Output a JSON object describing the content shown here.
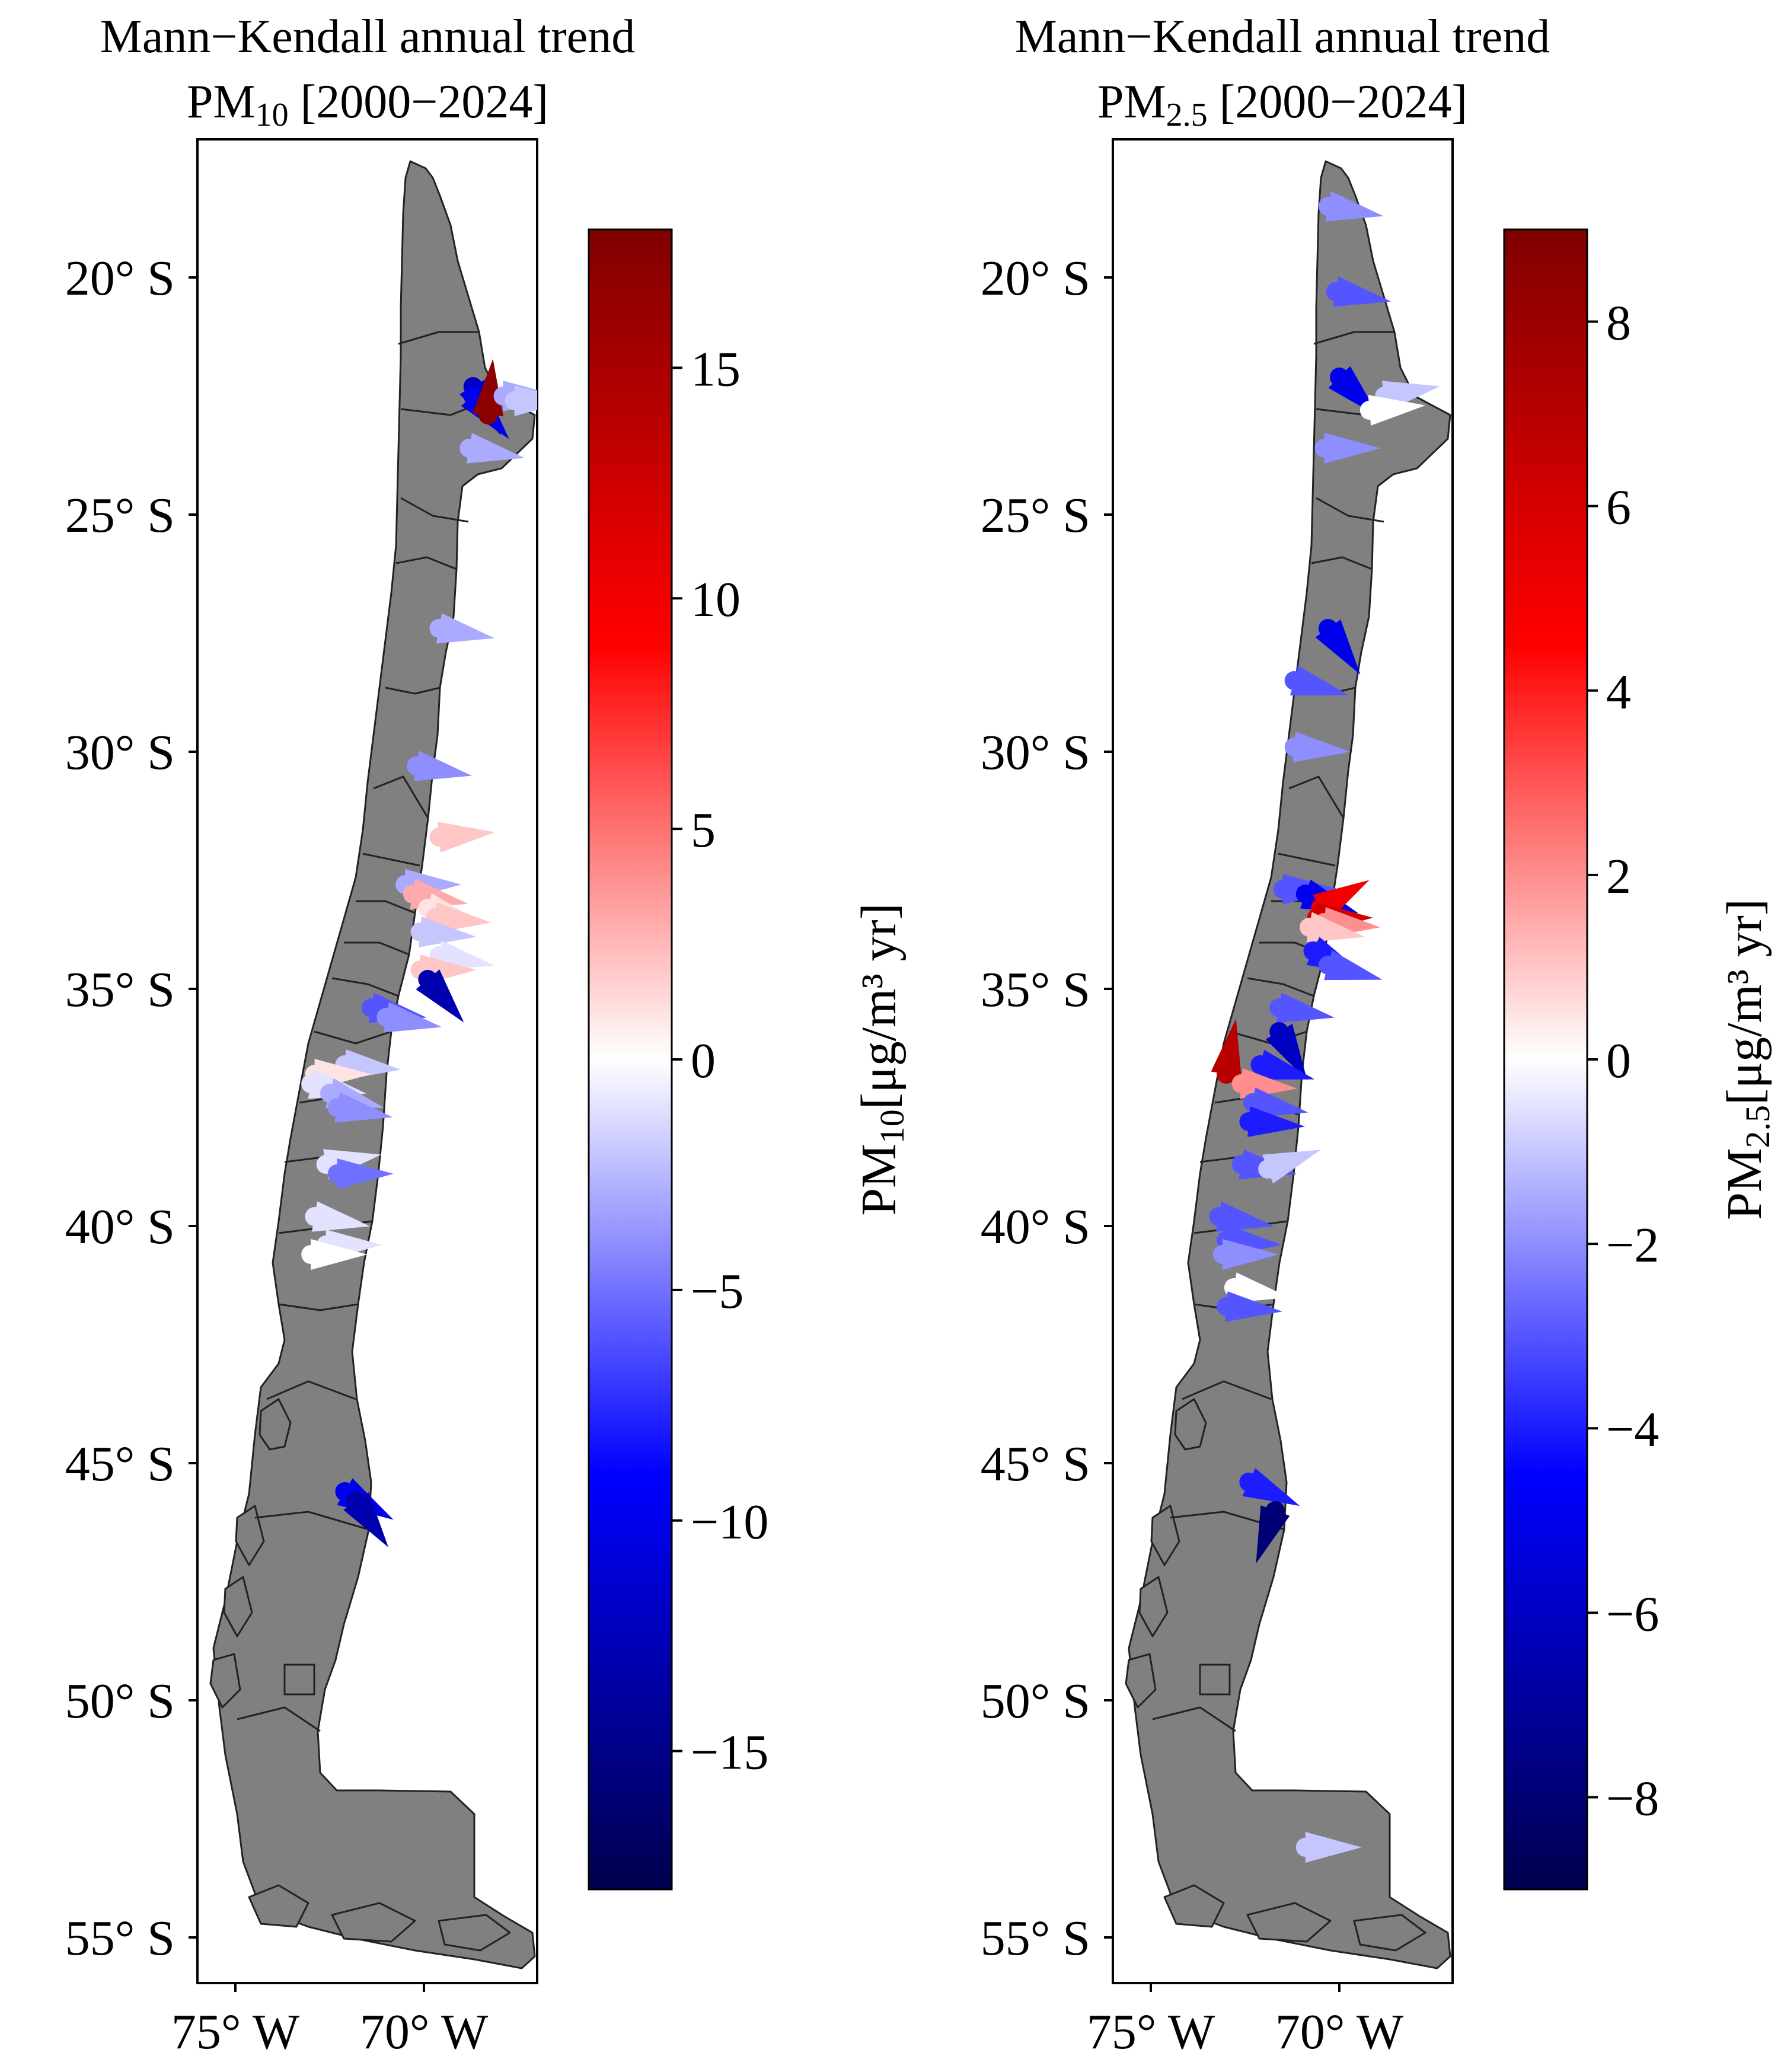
{
  "panels": [
    {
      "title_line1": "Mann−Kendall annual trend",
      "title_pm_base": "PM",
      "title_pm_sub": "10",
      "title_range": " [2000−2024]",
      "cbar_label_base": "PM",
      "cbar_label_sub": "10",
      "cbar_label_unit": "[μg/m³ yr]",
      "cbar_ticks": [
        "15",
        "10",
        "5",
        "0",
        "−5",
        "−10",
        "−15"
      ]
    },
    {
      "title_line1": "Mann−Kendall annual trend",
      "title_pm_base": "PM",
      "title_pm_sub": "2.5",
      "title_range": " [2000−2024]",
      "cbar_label_base": "PM",
      "cbar_label_sub": "2.5",
      "cbar_label_unit": "[μg/m³ yr]",
      "cbar_ticks": [
        "8",
        "6",
        "4",
        "2",
        "0",
        "−2",
        "−4",
        "−6",
        "−8"
      ]
    }
  ],
  "lat_labels": [
    "20° S",
    "25° S",
    "30° S",
    "35° S",
    "40° S",
    "45° S",
    "50° S",
    "55° S"
  ],
  "lon_labels": [
    "75° W",
    "70° W"
  ],
  "colors": {
    "land": "#808080",
    "border": "#222222",
    "colormap": "seismic",
    "seismic_stops": [
      "#00004c",
      "#0000ff",
      "#ffffff",
      "#ff0000",
      "#7f0000"
    ]
  },
  "chart_data": [
    {
      "type": "map",
      "variable": "PM10",
      "unit": "μg/m³ yr",
      "color_range": [
        -18,
        18
      ],
      "lat_range": [
        -56,
        -17
      ],
      "lon_range": [
        -76,
        -67
      ],
      "stations": [
        {
          "lat": -22.3,
          "lon": -68.7,
          "trend": -12,
          "angle": 60
        },
        {
          "lat": -22.5,
          "lon": -68.7,
          "trend": -10,
          "angle": 50
        },
        {
          "lat": -22.9,
          "lon": -68.3,
          "trend": 17,
          "angle": -85
        },
        {
          "lat": -22.5,
          "lon": -67.9,
          "trend": -3,
          "angle": 0
        },
        {
          "lat": -22.6,
          "lon": -67.6,
          "trend": -2,
          "angle": 0
        },
        {
          "lat": -23.6,
          "lon": -68.8,
          "trend": -3,
          "angle": 10
        },
        {
          "lat": -27.4,
          "lon": -69.6,
          "trend": -3,
          "angle": 10
        },
        {
          "lat": -30.3,
          "lon": -70.2,
          "trend": -4,
          "angle": 10
        },
        {
          "lat": -31.8,
          "lon": -69.6,
          "trend": 2,
          "angle": -5
        },
        {
          "lat": -32.8,
          "lon": -70.5,
          "trend": -3,
          "angle": 0
        },
        {
          "lat": -33.0,
          "lon": -70.3,
          "trend": 3,
          "angle": 10
        },
        {
          "lat": -33.3,
          "lon": -69.9,
          "trend": 1,
          "angle": 15
        },
        {
          "lat": -33.5,
          "lon": -69.7,
          "trend": 2,
          "angle": 5
        },
        {
          "lat": -33.8,
          "lon": -70.1,
          "trend": -2,
          "angle": 5
        },
        {
          "lat": -34.3,
          "lon": -69.6,
          "trend": -1,
          "angle": 10
        },
        {
          "lat": -34.6,
          "lon": -70.1,
          "trend": 2,
          "angle": 0
        },
        {
          "lat": -34.8,
          "lon": -69.9,
          "trend": -13,
          "angle": 50
        },
        {
          "lat": -35.4,
          "lon": -71.4,
          "trend": -6,
          "angle": 10
        },
        {
          "lat": -35.6,
          "lon": -71.0,
          "trend": -4,
          "angle": 10
        },
        {
          "lat": -36.6,
          "lon": -72.1,
          "trend": -2,
          "angle": 5
        },
        {
          "lat": -36.8,
          "lon": -72.9,
          "trend": 1,
          "angle": 0
        },
        {
          "lat": -37.0,
          "lon": -73.0,
          "trend": -1,
          "angle": 10
        },
        {
          "lat": -37.2,
          "lon": -72.5,
          "trend": -3,
          "angle": 15
        },
        {
          "lat": -37.5,
          "lon": -72.3,
          "trend": -4,
          "angle": 10
        },
        {
          "lat": -38.7,
          "lon": -72.6,
          "trend": -1,
          "angle": -10
        },
        {
          "lat": -38.9,
          "lon": -72.3,
          "trend": -5,
          "angle": 0
        },
        {
          "lat": -39.8,
          "lon": -72.9,
          "trend": -1,
          "angle": 10
        },
        {
          "lat": -40.4,
          "lon": -72.6,
          "trend": -1,
          "angle": 0
        },
        {
          "lat": -40.6,
          "lon": -73.0,
          "trend": 0,
          "angle": 0
        },
        {
          "lat": -45.6,
          "lon": -72.1,
          "trend": -10,
          "angle": 30
        },
        {
          "lat": -45.8,
          "lon": -71.8,
          "trend": -13,
          "angle": 55
        }
      ]
    },
    {
      "type": "map",
      "variable": "PM2.5",
      "unit": "μg/m³ yr",
      "color_range": [
        -9,
        9
      ],
      "lat_range": [
        -56,
        -17
      ],
      "lon_range": [
        -76,
        -67
      ],
      "stations": [
        {
          "lat": -18.5,
          "lon": -70.3,
          "trend": -2,
          "angle": 10
        },
        {
          "lat": -20.3,
          "lon": -70.1,
          "trend": -3,
          "angle": 10
        },
        {
          "lat": -22.1,
          "lon": -70.0,
          "trend": -5,
          "angle": 45
        },
        {
          "lat": -22.5,
          "lon": -68.8,
          "trend": -1,
          "angle": -10
        },
        {
          "lat": -22.8,
          "lon": -69.2,
          "trend": 0,
          "angle": -5
        },
        {
          "lat": -23.6,
          "lon": -70.4,
          "trend": -2,
          "angle": 0
        },
        {
          "lat": -27.4,
          "lon": -70.3,
          "trend": -5,
          "angle": 55
        },
        {
          "lat": -28.5,
          "lon": -71.2,
          "trend": -3,
          "angle": 15
        },
        {
          "lat": -29.9,
          "lon": -71.2,
          "trend": -2,
          "angle": 5
        },
        {
          "lat": -32.9,
          "lon": -71.5,
          "trend": -3,
          "angle": 0
        },
        {
          "lat": -33.0,
          "lon": -70.9,
          "trend": -5,
          "angle": 20
        },
        {
          "lat": -33.3,
          "lon": -70.5,
          "trend": 5,
          "angle": -30
        },
        {
          "lat": -33.5,
          "lon": -70.6,
          "trend": 6,
          "angle": 0
        },
        {
          "lat": -33.6,
          "lon": -70.4,
          "trend": 2,
          "angle": 5
        },
        {
          "lat": -33.7,
          "lon": -70.8,
          "trend": 1,
          "angle": 10
        },
        {
          "lat": -34.2,
          "lon": -70.7,
          "trend": -4,
          "angle": 25
        },
        {
          "lat": -34.5,
          "lon": -70.3,
          "trend": -3,
          "angle": 15
        },
        {
          "lat": -35.4,
          "lon": -71.6,
          "trend": -3,
          "angle": 10
        },
        {
          "lat": -35.9,
          "lon": -71.6,
          "trend": -6,
          "angle": 60
        },
        {
          "lat": -36.6,
          "lon": -72.1,
          "trend": -4,
          "angle": 15
        },
        {
          "lat": -36.8,
          "lon": -73.0,
          "trend": 7,
          "angle": -80
        },
        {
          "lat": -37.0,
          "lon": -72.6,
          "trend": 2,
          "angle": 5
        },
        {
          "lat": -37.4,
          "lon": -72.3,
          "trend": -3,
          "angle": 10
        },
        {
          "lat": -37.8,
          "lon": -72.4,
          "trend": -4,
          "angle": 5
        },
        {
          "lat": -38.7,
          "lon": -72.6,
          "trend": -3,
          "angle": 10
        },
        {
          "lat": -38.8,
          "lon": -71.9,
          "trend": -1,
          "angle": -20
        },
        {
          "lat": -39.8,
          "lon": -73.2,
          "trend": -3,
          "angle": 10
        },
        {
          "lat": -40.3,
          "lon": -73.0,
          "trend": -3,
          "angle": 5
        },
        {
          "lat": -40.6,
          "lon": -73.1,
          "trend": -2,
          "angle": 0
        },
        {
          "lat": -41.3,
          "lon": -72.8,
          "trend": 0,
          "angle": 10
        },
        {
          "lat": -41.7,
          "lon": -73.0,
          "trend": -3,
          "angle": 5
        },
        {
          "lat": -45.4,
          "lon": -72.4,
          "trend": -4,
          "angle": 25
        },
        {
          "lat": -46.0,
          "lon": -71.7,
          "trend": -8,
          "angle": 110
        },
        {
          "lat": -53.1,
          "lon": -70.9,
          "trend": -1,
          "angle": 0
        }
      ]
    }
  ]
}
